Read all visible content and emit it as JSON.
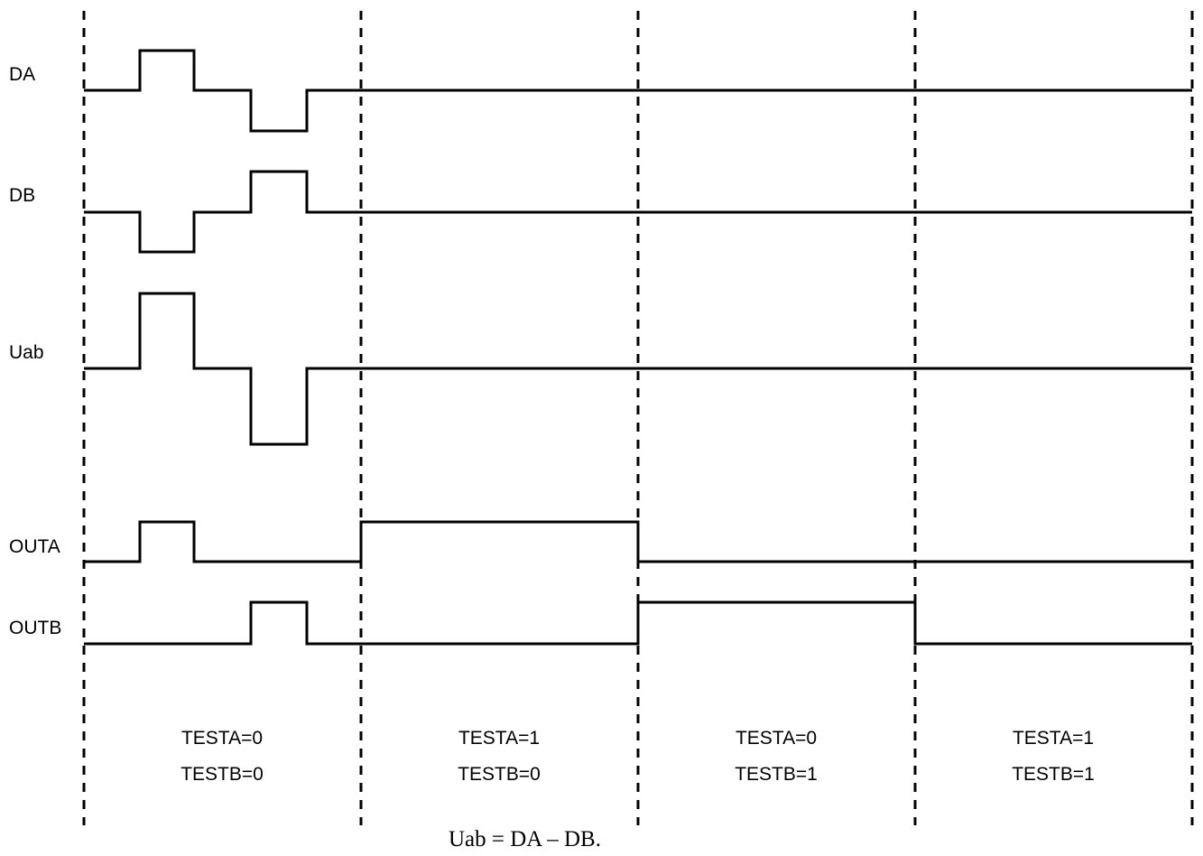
{
  "signals": [
    {
      "id": "da",
      "label": "DA"
    },
    {
      "id": "db",
      "label": "DB"
    },
    {
      "id": "uab",
      "label": "Uab"
    },
    {
      "id": "outa",
      "label": "OUTA"
    },
    {
      "id": "outb",
      "label": "OUTB"
    }
  ],
  "columns": [
    {
      "testa": "TESTA=0",
      "testb": "TESTB=0"
    },
    {
      "testa": "TESTA=1",
      "testb": "TESTB=0"
    },
    {
      "testa": "TESTA=0",
      "testb": "TESTB=1"
    },
    {
      "testa": "TESTA=1",
      "testb": "TESTB=1"
    }
  ],
  "caption": "Uab = DA – DB."
}
